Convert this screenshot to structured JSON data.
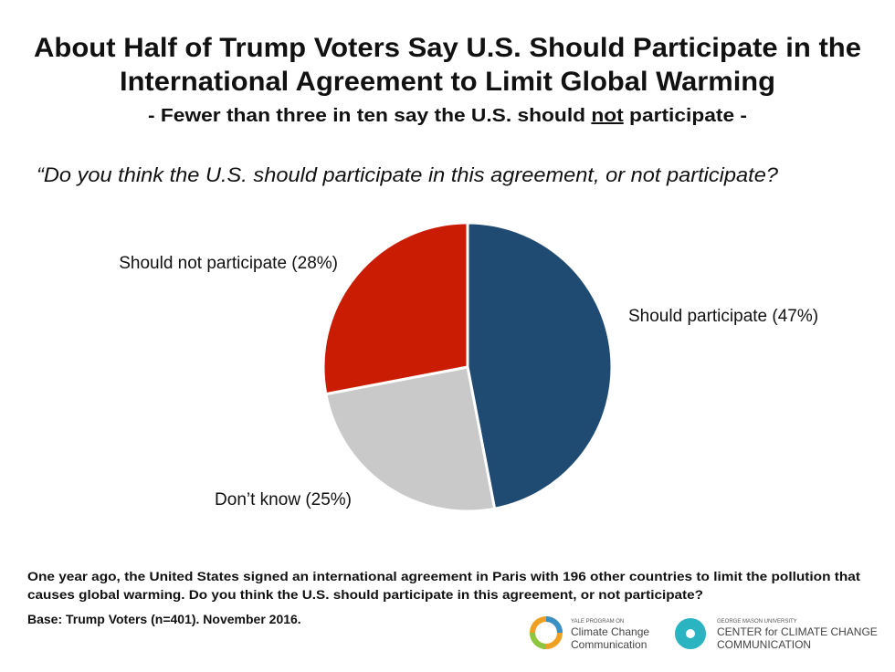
{
  "chart_data": {
    "type": "pie",
    "title": [
      "About Half of Trump Voters Say U.S. Should Participate in the",
      "International Agreement to Limit Global Warming"
    ],
    "subtitle": [
      "- Fewer than three in ten say the U.S. should ",
      "not",
      " participate -"
    ],
    "question": "“Do you think the U.S. should participate in this agreement, or not participate?",
    "values": [
      47,
      25,
      28
    ],
    "value_labels": [
      "Should participate (47%)",
      "Don’t know (25%)",
      "Should not participate (28%)"
    ],
    "colors": [
      "#1f4a72",
      "#c9c9c9",
      "#c91c03"
    ],
    "footnote": [
      "One year ago, the United States signed an international agreement in Paris with 196 other countries to limit the pollution that",
      "causes global warming. Do you think the U.S. should participate in this agreement, or not participate?"
    ],
    "base": "Base: Trump Voters (n=401). November 2016."
  },
  "logos": [
    [
      "YALE PROGRAM ON",
      "Climate Change",
      "Communication"
    ],
    [
      "GEORGE MASON UNIVERSITY",
      "CENTER for CLIMATE CHANGE",
      "COMMUNICATION"
    ]
  ]
}
